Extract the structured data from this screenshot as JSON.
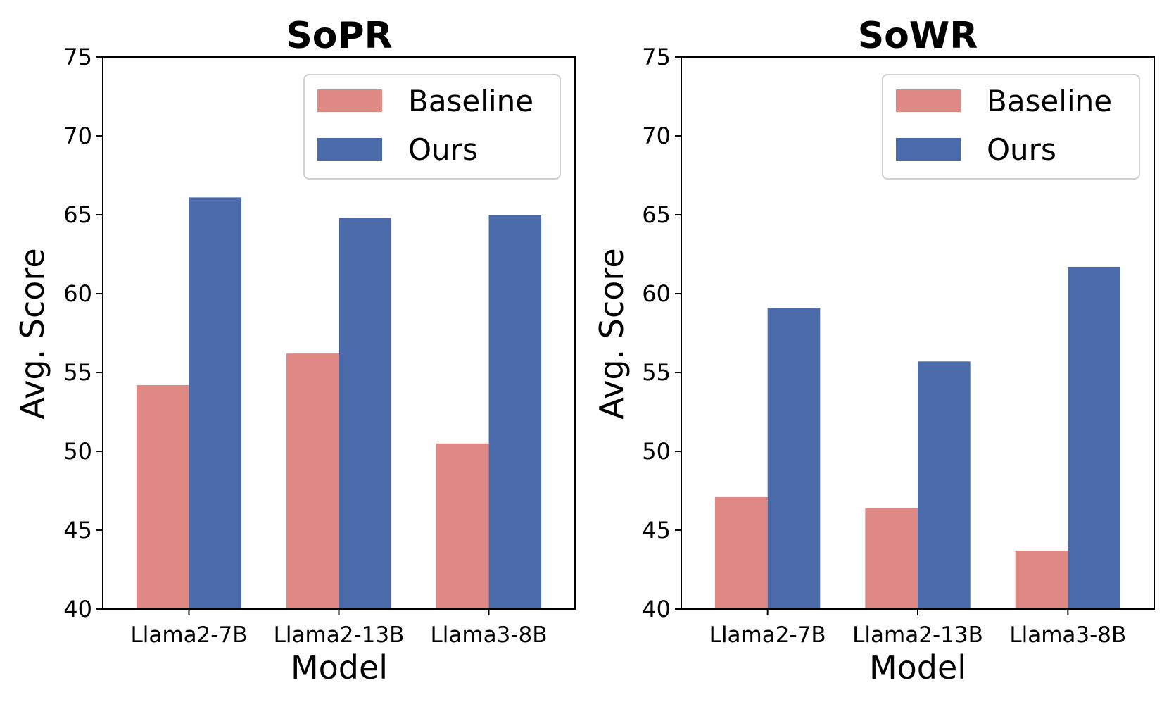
{
  "chart_data": [
    {
      "type": "bar",
      "title": "SoPR",
      "xlabel": "Model",
      "ylabel": "Avg. Score",
      "ylim": [
        40,
        75
      ],
      "yticks": [
        40,
        45,
        50,
        55,
        60,
        65,
        70,
        75
      ],
      "grid": false,
      "legend_position": "top-right",
      "categories": [
        "Llama2-7B",
        "Llama2-13B",
        "Llama3-8B"
      ],
      "series": [
        {
          "name": "Baseline",
          "color": "#e08883",
          "values": [
            54.2,
            56.2,
            50.5
          ]
        },
        {
          "name": "Ours",
          "color": "#4a6aaa",
          "values": [
            66.1,
            64.8,
            65.0
          ]
        }
      ]
    },
    {
      "type": "bar",
      "title": "SoWR",
      "xlabel": "Model",
      "ylabel": "Avg. Score",
      "ylim": [
        40,
        75
      ],
      "yticks": [
        40,
        45,
        50,
        55,
        60,
        65,
        70,
        75
      ],
      "grid": false,
      "legend_position": "top-right",
      "categories": [
        "Llama2-7B",
        "Llama2-13B",
        "Llama3-8B"
      ],
      "series": [
        {
          "name": "Baseline",
          "color": "#e08883",
          "values": [
            47.1,
            46.4,
            43.7
          ]
        },
        {
          "name": "Ours",
          "color": "#4a6aaa",
          "values": [
            59.1,
            55.7,
            61.7
          ]
        }
      ]
    }
  ]
}
